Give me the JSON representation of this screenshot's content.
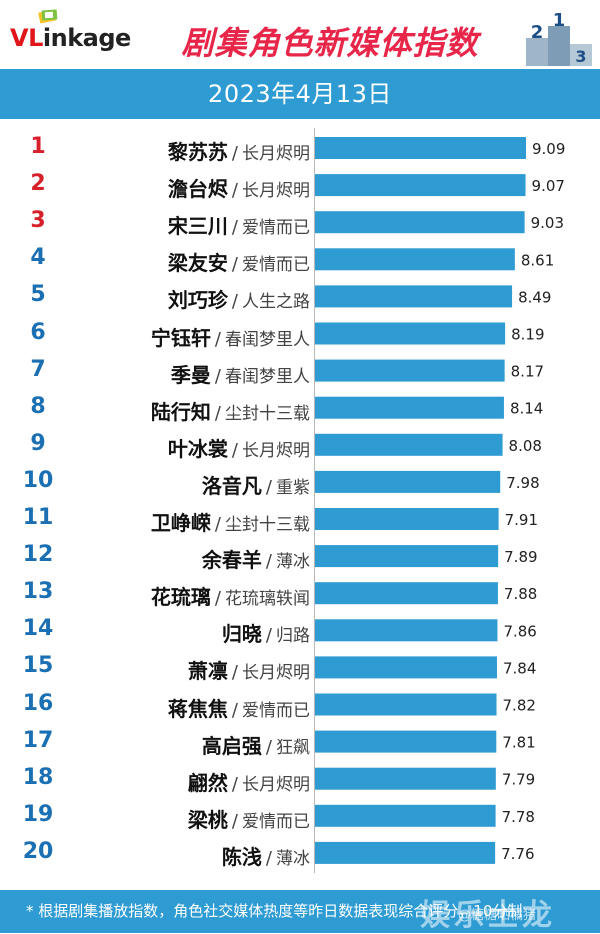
{
  "header": {
    "logo_vl": "VL",
    "logo_rest": "inkage",
    "title": "剧集角色新媒体指数",
    "podium_digits": [
      "2",
      "1",
      "3"
    ]
  },
  "date": "2023年4月13日",
  "separator": "/",
  "footnote": "* 根据剧集播放指数，角色社交媒体热度等昨日数据表现综合评分，10分制",
  "watermark": "娱乐土龙",
  "watermark_small": "@糖糖晒橘猪",
  "colors": {
    "bar": "#2e9bd3",
    "rank_top3": "#d6202a",
    "rank_other": "#1b6fb3",
    "date_bar": "#2e9bd3",
    "title": "#e8264a"
  },
  "chart_data": {
    "type": "bar",
    "orientation": "horizontal",
    "title": "剧集角色新媒体指数",
    "subtitle": "2023年4月13日",
    "xlim": [
      0,
      10
    ],
    "categories": [
      {
        "rank": "1",
        "name": "黎苏苏",
        "drama": "长月烬明"
      },
      {
        "rank": "2",
        "name": "澹台烬",
        "drama": "长月烬明"
      },
      {
        "rank": "3",
        "name": "宋三川",
        "drama": "爱情而已"
      },
      {
        "rank": "4",
        "name": "梁友安",
        "drama": "爱情而已"
      },
      {
        "rank": "5",
        "name": "刘巧珍",
        "drama": "人生之路"
      },
      {
        "rank": "6",
        "name": "宁钰轩",
        "drama": "春闺梦里人"
      },
      {
        "rank": "7",
        "name": "季曼",
        "drama": "春闺梦里人"
      },
      {
        "rank": "8",
        "name": "陆行知",
        "drama": "尘封十三载"
      },
      {
        "rank": "9",
        "name": "叶冰裳",
        "drama": "长月烬明"
      },
      {
        "rank": "10",
        "name": "洛音凡",
        "drama": "重紫"
      },
      {
        "rank": "11",
        "name": "卫峥嵘",
        "drama": "尘封十三载"
      },
      {
        "rank": "12",
        "name": "余春羊",
        "drama": "薄冰"
      },
      {
        "rank": "13",
        "name": "花琉璃",
        "drama": "花琉璃轶闻"
      },
      {
        "rank": "14",
        "name": "归晓",
        "drama": "归路"
      },
      {
        "rank": "15",
        "name": "萧凛",
        "drama": "长月烬明"
      },
      {
        "rank": "16",
        "name": "蒋焦焦",
        "drama": "爱情而已"
      },
      {
        "rank": "17",
        "name": "高启强",
        "drama": "狂飙"
      },
      {
        "rank": "18",
        "name": "翩然",
        "drama": "长月烬明"
      },
      {
        "rank": "19",
        "name": "梁桃",
        "drama": "爱情而已"
      },
      {
        "rank": "20",
        "name": "陈浅",
        "drama": "薄冰"
      }
    ],
    "values": [
      "9.09",
      "9.07",
      "9.03",
      "8.61",
      "8.49",
      "8.19",
      "8.17",
      "8.14",
      "8.08",
      "7.98",
      "7.91",
      "7.89",
      "7.88",
      "7.86",
      "7.84",
      "7.82",
      "7.81",
      "7.79",
      "7.78",
      "7.76"
    ]
  }
}
